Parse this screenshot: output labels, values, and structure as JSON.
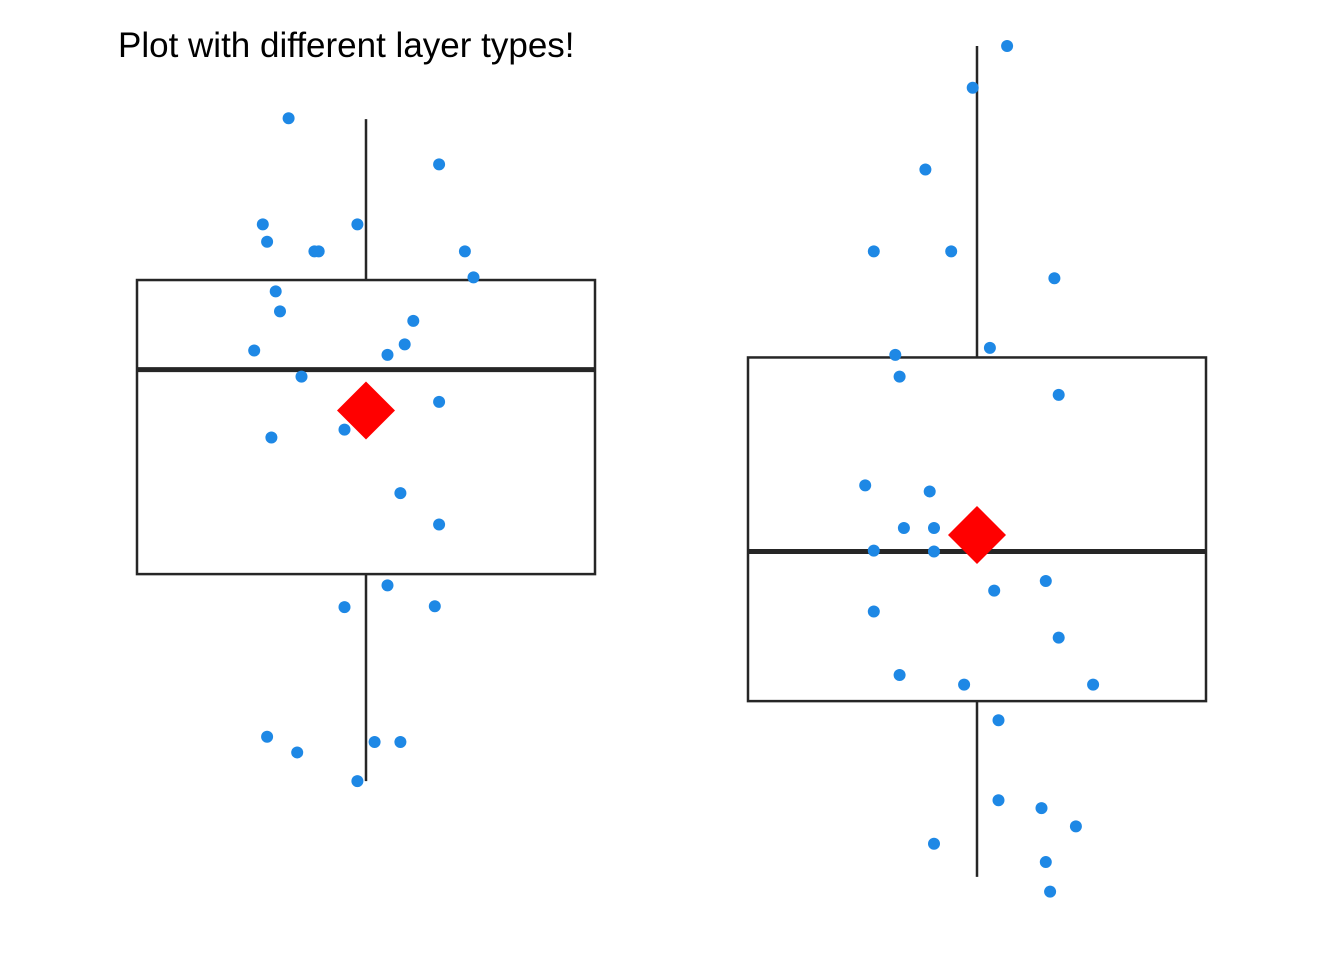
{
  "title": "Plot with different layer types!",
  "chart_data": {
    "type": "boxplot",
    "title": "Plot with different layer types!",
    "xlabel": "",
    "ylabel": "",
    "axes_visible": false,
    "grid": false,
    "ylim": [
      0,
      1
    ],
    "colors": {
      "points": "#1E88E5",
      "mean_marker": "#FF0000",
      "box_stroke": "#262626"
    },
    "groups": [
      {
        "box": {
          "whisker_low": 0.155,
          "q1": 0.393,
          "median": 0.628,
          "q3": 0.731,
          "whisker_high": 0.916
        },
        "mean": 0.581,
        "points": [
          [
            -0.18,
            0.917
          ],
          [
            0.17,
            0.864
          ],
          [
            -0.24,
            0.795
          ],
          [
            -0.02,
            0.795
          ],
          [
            -0.12,
            0.764
          ],
          [
            -0.11,
            0.764
          ],
          [
            0.23,
            0.764
          ],
          [
            -0.23,
            0.775
          ],
          [
            0.25,
            0.734
          ],
          [
            -0.21,
            0.718
          ],
          [
            0.11,
            0.684
          ],
          [
            -0.2,
            0.695
          ],
          [
            -0.26,
            0.65
          ],
          [
            0.09,
            0.657
          ],
          [
            0.05,
            0.645
          ],
          [
            -0.15,
            0.62
          ],
          [
            0.17,
            0.591
          ],
          [
            0.02,
            0.587
          ],
          [
            -0.05,
            0.559
          ],
          [
            -0.22,
            0.55
          ],
          [
            0.08,
            0.486
          ],
          [
            0.17,
            0.45
          ],
          [
            0.05,
            0.38
          ],
          [
            0.16,
            0.356
          ],
          [
            -0.05,
            0.355
          ],
          [
            -0.23,
            0.206
          ],
          [
            -0.16,
            0.188
          ],
          [
            0.02,
            0.2
          ],
          [
            0.08,
            0.2
          ],
          [
            -0.02,
            0.155
          ]
        ]
      },
      {
        "box": {
          "whisker_low": 0.045,
          "q1": 0.247,
          "median": 0.419,
          "q3": 0.642,
          "whisker_high": 1.0
        },
        "mean": 0.438,
        "points": [
          [
            0.07,
            1.0
          ],
          [
            -0.01,
            0.952
          ],
          [
            -0.12,
            0.858
          ],
          [
            -0.06,
            0.764
          ],
          [
            -0.24,
            0.764
          ],
          [
            0.18,
            0.733
          ],
          [
            0.03,
            0.653
          ],
          [
            -0.19,
            0.645
          ],
          [
            -0.18,
            0.62
          ],
          [
            0.19,
            0.599
          ],
          [
            -0.26,
            0.495
          ],
          [
            -0.11,
            0.488
          ],
          [
            -0.17,
            0.446
          ],
          [
            -0.1,
            0.446
          ],
          [
            -0.24,
            0.42
          ],
          [
            -0.1,
            0.419
          ],
          [
            0.16,
            0.385
          ],
          [
            0.04,
            0.374
          ],
          [
            -0.24,
            0.35
          ],
          [
            0.19,
            0.32
          ],
          [
            -0.18,
            0.277
          ],
          [
            -0.03,
            0.266
          ],
          [
            0.27,
            0.266
          ],
          [
            0.05,
            0.225
          ],
          [
            0.05,
            0.133
          ],
          [
            0.15,
            0.124
          ],
          [
            0.23,
            0.103
          ],
          [
            -0.1,
            0.083
          ],
          [
            0.16,
            0.062
          ],
          [
            0.17,
            0.028
          ]
        ]
      }
    ]
  }
}
